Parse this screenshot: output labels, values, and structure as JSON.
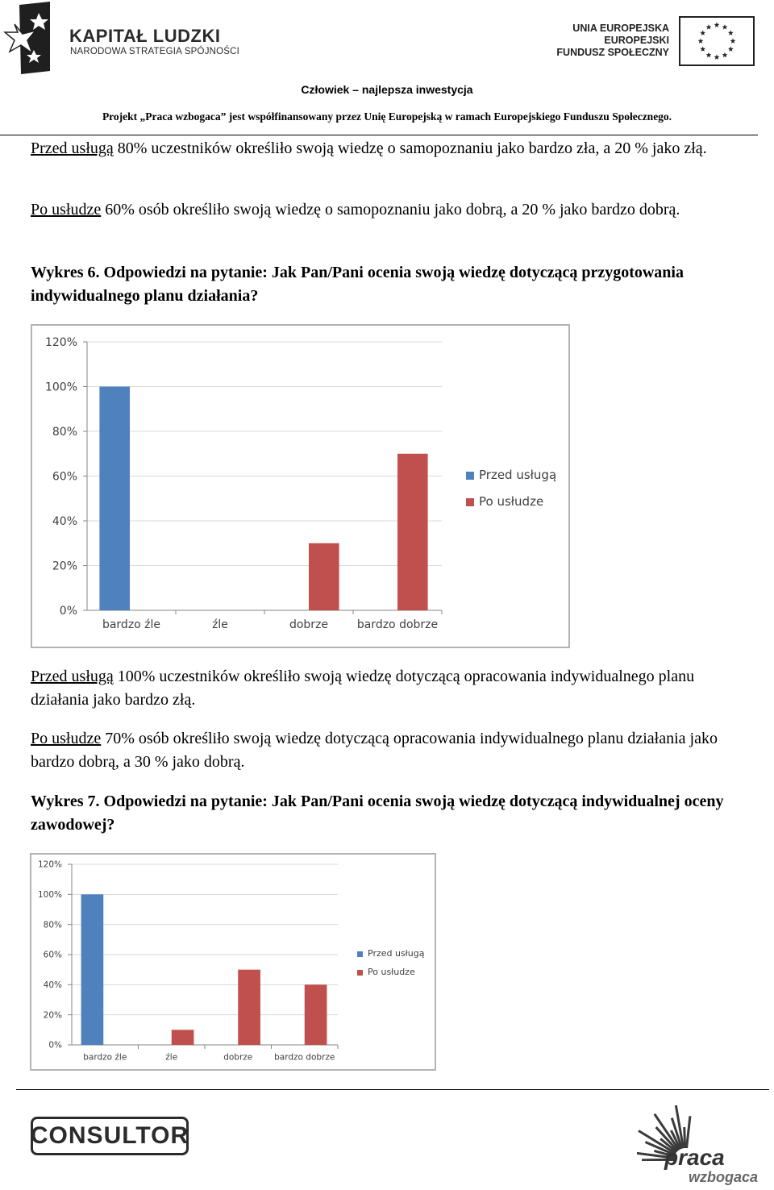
{
  "header": {
    "kl_title": "KAPITAŁ LUDZKI",
    "kl_subtitle": "NARODOWA STRATEGIA SPÓJNOŚCI",
    "ue_line1": "UNIA EUROPEJSKA",
    "ue_line2": "EUROPEJSKI",
    "ue_line3": "FUNDUSZ SPOŁECZNY",
    "slogan": "Człowiek – najlepsza inwestycja",
    "project": "Projekt „Praca wzbogaca” jest współfinansowany przez Unię Europejską w ramach Europejskiego Funduszu Społecznego."
  },
  "body": {
    "p1_lead": "Przed usługą",
    "p1_rest": " 80% uczestników  określiło swoją wiedzę o samopoznaniu jako bardzo zła, a 20 % jako złą.",
    "p2_lead": "Po usłudze",
    "p2_rest": "  60% osób określiło swoją wiedzę o samopoznaniu jako dobrą, a 20 % jako bardzo dobrą.",
    "h6": "Wykres 6. Odpowiedzi na pytanie: Jak Pan/Pani ocenia swoją wiedzę dotyczącą przygotowania indywidualnego planu działania?",
    "p3_lead": "Przed usługą",
    "p3_rest": " 100% uczestników  określiło swoją wiedzę dotyczącą opracowania indywidualnego planu działania jako bardzo złą.",
    "p4_lead": "Po usłudze",
    "p4_rest": "  70% osób określiło swoją wiedzę dotyczącą opracowania indywidualnego planu działania jako bardzo dobrą, a 30 % jako dobrą.",
    "h7": "Wykres 7. Odpowiedzi na pytanie: Jak Pan/Pani ocenia swoją wiedzę dotyczącą indywidualnej oceny zawodowej?"
  },
  "footer": {
    "left_logo": "CONSULTOR",
    "right_logo_1": "praca",
    "right_logo_2": "wzbogaca"
  },
  "colors": {
    "before": "#4f81bd",
    "after": "#c0504d",
    "grid": "#d9d9d9",
    "axis": "#868686"
  },
  "chart_data": [
    {
      "type": "bar",
      "categories": [
        "bardzo źle",
        "źle",
        "dobrze",
        "bardzo dobrze"
      ],
      "series": [
        {
          "name": "Przed usługą",
          "values": [
            100,
            0,
            0,
            0
          ]
        },
        {
          "name": "Po usłudze",
          "values": [
            0,
            0,
            30,
            70
          ]
        }
      ],
      "yticks": [
        "0%",
        "20%",
        "40%",
        "60%",
        "80%",
        "100%",
        "120%"
      ],
      "ylim": [
        0,
        120
      ],
      "legend": "right"
    },
    {
      "type": "bar",
      "categories": [
        "bardzo źle",
        "źle",
        "dobrze",
        "bardzo dobrze"
      ],
      "series": [
        {
          "name": "Przed usługą",
          "values": [
            100,
            0,
            0,
            0
          ]
        },
        {
          "name": "Po usłudze",
          "values": [
            0,
            10,
            50,
            40
          ]
        }
      ],
      "yticks": [
        "0%",
        "20%",
        "40%",
        "60%",
        "80%",
        "100%",
        "120%"
      ],
      "ylim": [
        0,
        120
      ],
      "legend": "right"
    }
  ]
}
